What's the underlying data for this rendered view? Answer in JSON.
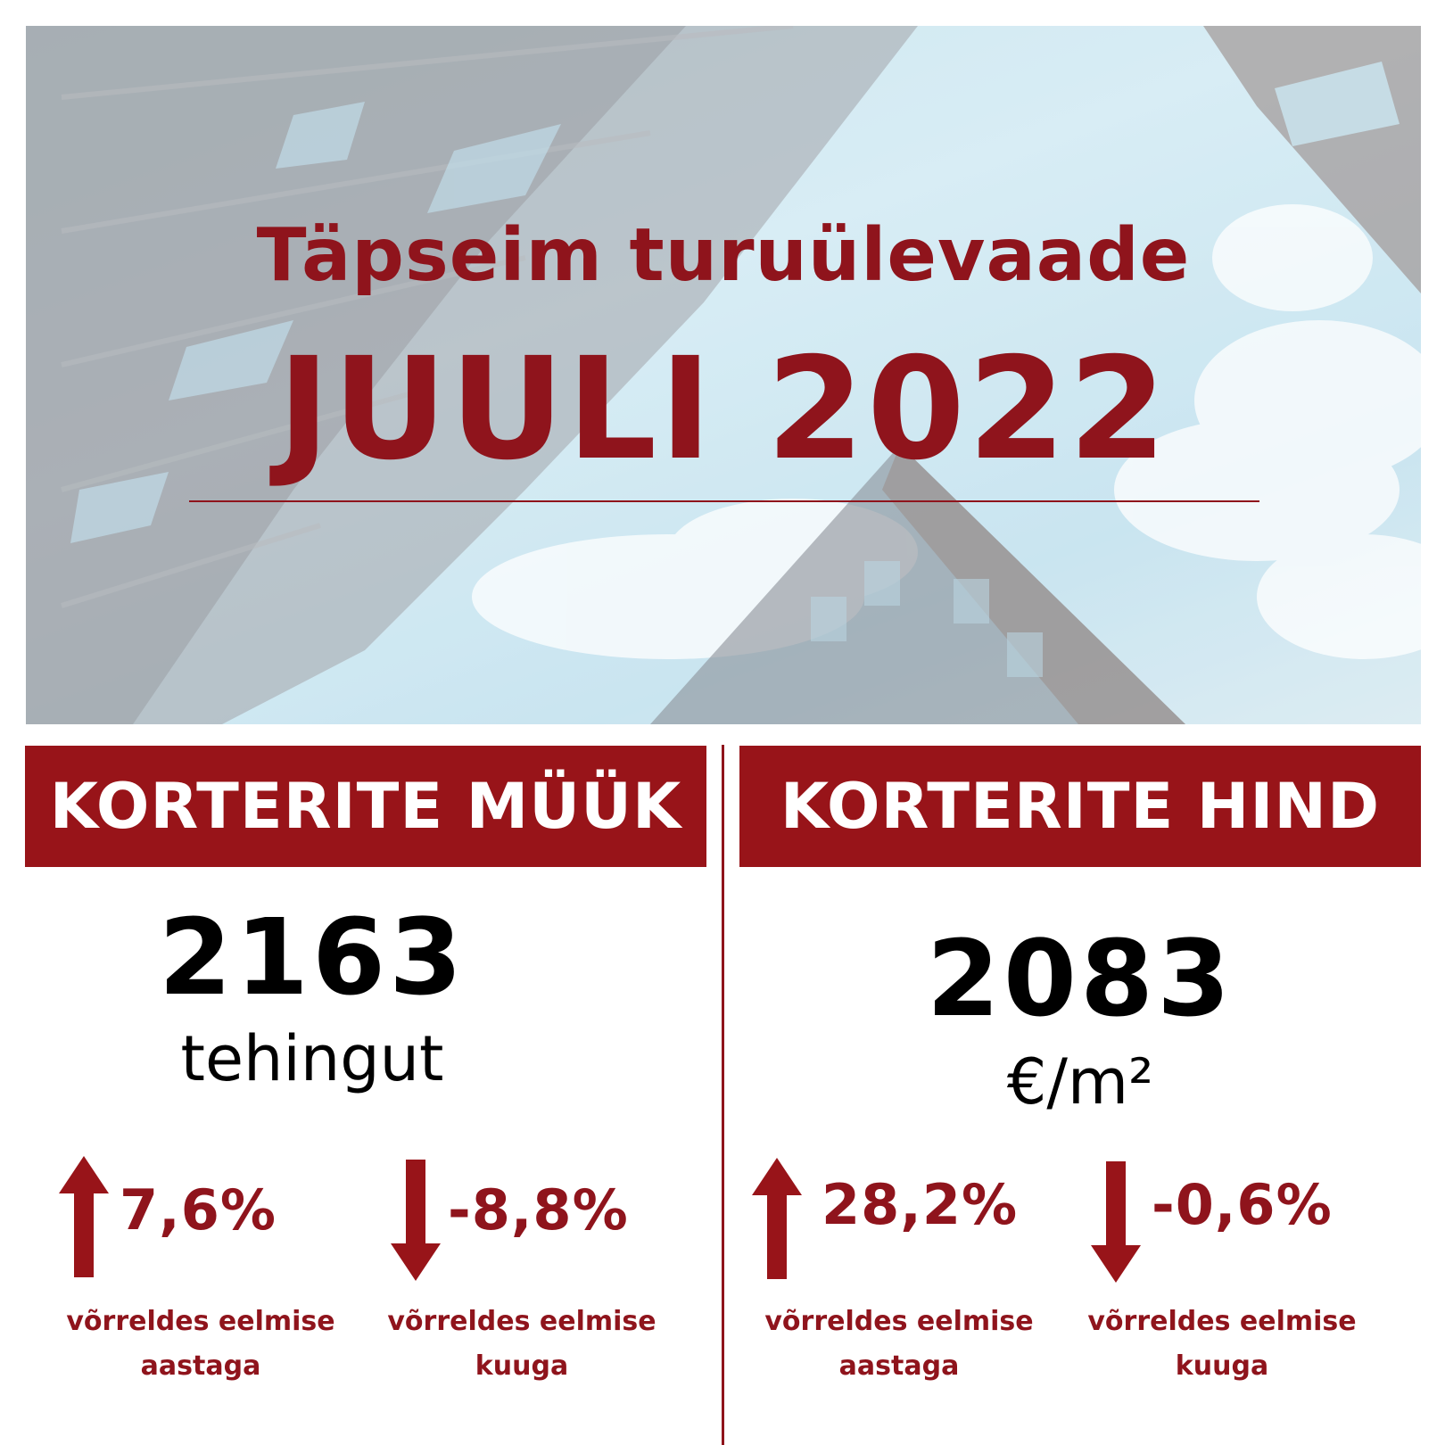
{
  "hero": {
    "title": "Täpseim turuülevaade",
    "month": "JUULI 2022"
  },
  "colors": {
    "accent": "#981419",
    "text": "#000000",
    "background": "#ffffff"
  },
  "panels": [
    {
      "header": "KORTERITE MÜÜK",
      "value": "2163",
      "unit": "tehingut",
      "stats": [
        {
          "direction": "up",
          "icon": "arrow-up-icon",
          "value": "7,6%",
          "caption_line1": "võrreldes eelmise",
          "caption_line2": "aastaga"
        },
        {
          "direction": "down",
          "icon": "arrow-down-icon",
          "value": "-8,8%",
          "caption_line1": "võrreldes eelmise",
          "caption_line2": "kuuga"
        }
      ]
    },
    {
      "header": "KORTERITE HIND",
      "value": "2083",
      "unit": "€/m²",
      "stats": [
        {
          "direction": "up",
          "icon": "arrow-up-icon",
          "value": "28,2%",
          "caption_line1": "võrreldes eelmise",
          "caption_line2": "aastaga"
        },
        {
          "direction": "down",
          "icon": "arrow-down-icon",
          "value": "-0,6%",
          "caption_line1": "võrreldes eelmise",
          "caption_line2": "kuuga"
        }
      ]
    }
  ]
}
